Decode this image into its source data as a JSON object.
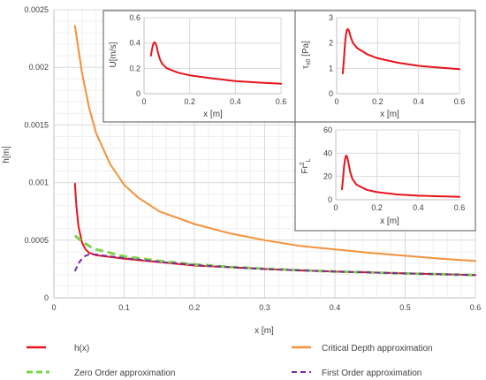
{
  "chart_data": [
    {
      "id": "main",
      "type": "line",
      "xlabel": "x [m]",
      "ylabel": "h[m]",
      "xlim": [
        0,
        0.6
      ],
      "ylim": [
        0,
        0.0025
      ],
      "xticks": [
        "0",
        "0.1",
        "0.2",
        "0.3",
        "0.4",
        "0.5",
        "0.6"
      ],
      "yticks": [
        "0",
        "0.0005",
        "0.001",
        "0.0015",
        "0.002",
        "0.0025"
      ],
      "grid": true,
      "legend_position": "bottom",
      "series": [
        {
          "name": "h(x)",
          "color": "#e8141b",
          "dash": "solid",
          "x": [
            0.03,
            0.032,
            0.035,
            0.04,
            0.045,
            0.05,
            0.06,
            0.08,
            0.1,
            0.15,
            0.2,
            0.25,
            0.3,
            0.35,
            0.4,
            0.45,
            0.5,
            0.55,
            0.6
          ],
          "y": [
            0.00099,
            0.0008,
            0.00062,
            0.00048,
            0.00042,
            0.00039,
            0.00037,
            0.000355,
            0.00034,
            0.00031,
            0.00028,
            0.000265,
            0.00025,
            0.000238,
            0.000228,
            0.00022,
            0.000212,
            0.000205,
            0.000198
          ]
        },
        {
          "name": "Critical Depth approximation",
          "color": "#f5913a",
          "dash": "solid",
          "x": [
            0.03,
            0.04,
            0.05,
            0.06,
            0.08,
            0.1,
            0.12,
            0.15,
            0.2,
            0.25,
            0.3,
            0.35,
            0.4,
            0.45,
            0.5,
            0.55,
            0.6
          ],
          "y": [
            0.00236,
            0.00195,
            0.00165,
            0.00143,
            0.00116,
            0.00098,
            0.00087,
            0.00075,
            0.00064,
            0.00056,
            0.0005,
            0.00045,
            0.00042,
            0.00039,
            0.000365,
            0.00034,
            0.00032
          ]
        },
        {
          "name": "Zero Order approximation",
          "color": "#7cd34a",
          "dash": "dashed",
          "x": [
            0.03,
            0.04,
            0.05,
            0.06,
            0.08,
            0.1,
            0.15,
            0.2,
            0.25,
            0.3,
            0.35,
            0.4,
            0.45,
            0.5,
            0.55,
            0.6
          ],
          "y": [
            0.00054,
            0.00049,
            0.00045,
            0.00042,
            0.00039,
            0.00036,
            0.00032,
            0.00029,
            0.000268,
            0.000252,
            0.00024,
            0.000228,
            0.00022,
            0.000212,
            0.000204,
            0.000197
          ]
        },
        {
          "name": "First Order approximation",
          "color": "#7a2ba0",
          "dash": "dashed",
          "x": [
            0.03,
            0.035,
            0.04,
            0.045,
            0.05,
            0.055,
            0.06,
            0.08,
            0.1,
            0.15,
            0.2,
            0.25,
            0.3,
            0.35,
            0.4,
            0.45,
            0.5,
            0.55,
            0.6
          ],
          "y": [
            0.00023,
            0.0003,
            0.00034,
            0.000365,
            0.000375,
            0.000378,
            0.000376,
            0.00036,
            0.000345,
            0.000312,
            0.000285,
            0.000266,
            0.00025,
            0.000238,
            0.000228,
            0.00022,
            0.000212,
            0.000205,
            0.000198
          ]
        }
      ]
    },
    {
      "id": "inset_u",
      "type": "line",
      "xlabel": "x [m]",
      "ylabel": "U[m/s]",
      "xlim": [
        0,
        0.6
      ],
      "ylim": [
        0,
        0.6
      ],
      "xticks": [
        "0",
        "0.2",
        "0.4",
        "0.6"
      ],
      "yticks": [
        "0",
        "0.2",
        "0.4",
        "0.6"
      ],
      "series": [
        {
          "color": "#e8141b",
          "x": [
            0.03,
            0.035,
            0.04,
            0.045,
            0.05,
            0.055,
            0.06,
            0.07,
            0.08,
            0.1,
            0.15,
            0.2,
            0.3,
            0.4,
            0.5,
            0.6
          ],
          "y": [
            0.3,
            0.35,
            0.39,
            0.405,
            0.4,
            0.375,
            0.33,
            0.27,
            0.235,
            0.2,
            0.165,
            0.145,
            0.12,
            0.1,
            0.088,
            0.078
          ]
        }
      ]
    },
    {
      "id": "inset_tau",
      "type": "line",
      "xlabel": "x [m]",
      "ylabel_main": "τ",
      "ylabel_sub": "x0",
      "ylabel_rest": " [Pa]",
      "xlim": [
        0,
        0.6
      ],
      "ylim": [
        0,
        3
      ],
      "xticks": [
        "0",
        "0.2",
        "0.4",
        "0.6"
      ],
      "yticks": [
        "0",
        "1",
        "2",
        "3"
      ],
      "series": [
        {
          "color": "#e8141b",
          "x": [
            0.03,
            0.035,
            0.04,
            0.045,
            0.05,
            0.055,
            0.06,
            0.07,
            0.08,
            0.1,
            0.15,
            0.2,
            0.3,
            0.4,
            0.5,
            0.6
          ],
          "y": [
            0.8,
            1.3,
            1.9,
            2.3,
            2.52,
            2.55,
            2.48,
            2.2,
            2.0,
            1.8,
            1.55,
            1.4,
            1.22,
            1.1,
            1.03,
            0.97
          ]
        }
      ]
    },
    {
      "id": "inset_fr",
      "type": "line",
      "xlabel": "x [m]",
      "ylabel_main": "Fr",
      "ylabel_sup": "2",
      "ylabel_sub": "L",
      "xlim": [
        0,
        0.6
      ],
      "ylim": [
        0,
        60
      ],
      "xticks": [
        "0",
        "0.2",
        "0.4",
        "0.6"
      ],
      "yticks": [
        "0",
        "20",
        "40",
        "60"
      ],
      "series": [
        {
          "color": "#e8141b",
          "x": [
            0.03,
            0.035,
            0.04,
            0.045,
            0.05,
            0.055,
            0.06,
            0.07,
            0.08,
            0.1,
            0.15,
            0.2,
            0.3,
            0.4,
            0.5,
            0.6
          ],
          "y": [
            9,
            18,
            28,
            35,
            38,
            37,
            33,
            24,
            18,
            13,
            8.5,
            6.5,
            4.5,
            3.5,
            3,
            2.5
          ]
        }
      ]
    }
  ]
}
